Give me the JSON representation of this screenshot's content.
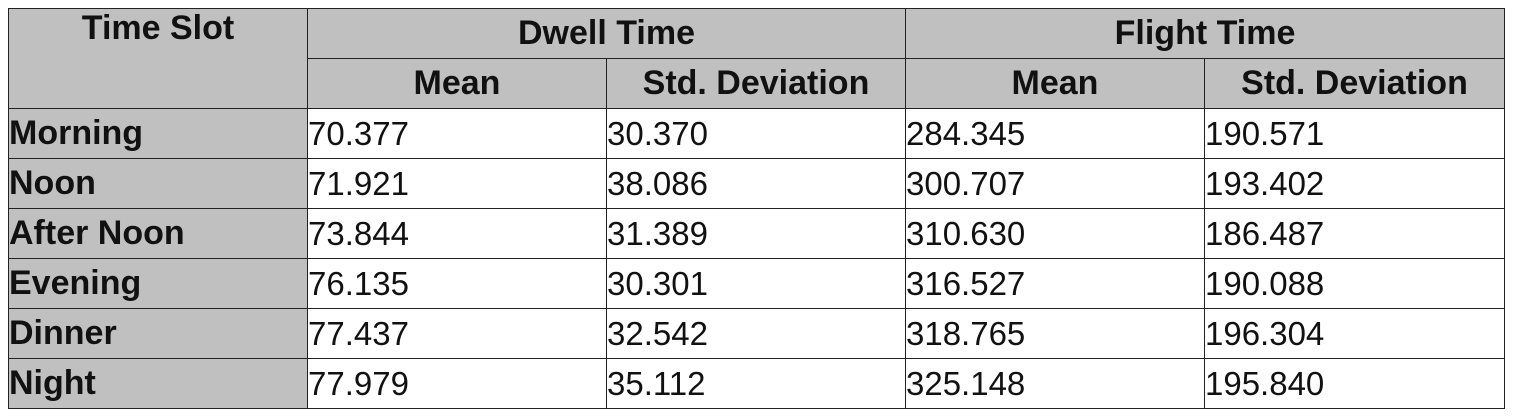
{
  "table": {
    "header": {
      "time_slot": "Time Slot",
      "dwell_time": "Dwell Time",
      "flight_time": "Flight Time",
      "mean": "Mean",
      "std_deviation": "Std. Deviation"
    },
    "rows": [
      {
        "slot": "Morning",
        "dwell_mean": "70.377",
        "dwell_std": "30.370",
        "flight_mean": "284.345",
        "flight_std": "190.571"
      },
      {
        "slot": "Noon",
        "dwell_mean": "71.921",
        "dwell_std": "38.086",
        "flight_mean": "300.707",
        "flight_std": "193.402"
      },
      {
        "slot": "After Noon",
        "dwell_mean": "73.844",
        "dwell_std": "31.389",
        "flight_mean": "310.630",
        "flight_std": "186.487"
      },
      {
        "slot": "Evening",
        "dwell_mean": "76.135",
        "dwell_std": "30.301",
        "flight_mean": "316.527",
        "flight_std": "190.088"
      },
      {
        "slot": "Dinner",
        "dwell_mean": "77.437",
        "dwell_std": "32.542",
        "flight_mean": "318.765",
        "flight_std": "196.304"
      },
      {
        "slot": "Night",
        "dwell_mean": "77.979",
        "dwell_std": "35.112",
        "flight_mean": "325.148",
        "flight_std": "195.840"
      }
    ]
  }
}
